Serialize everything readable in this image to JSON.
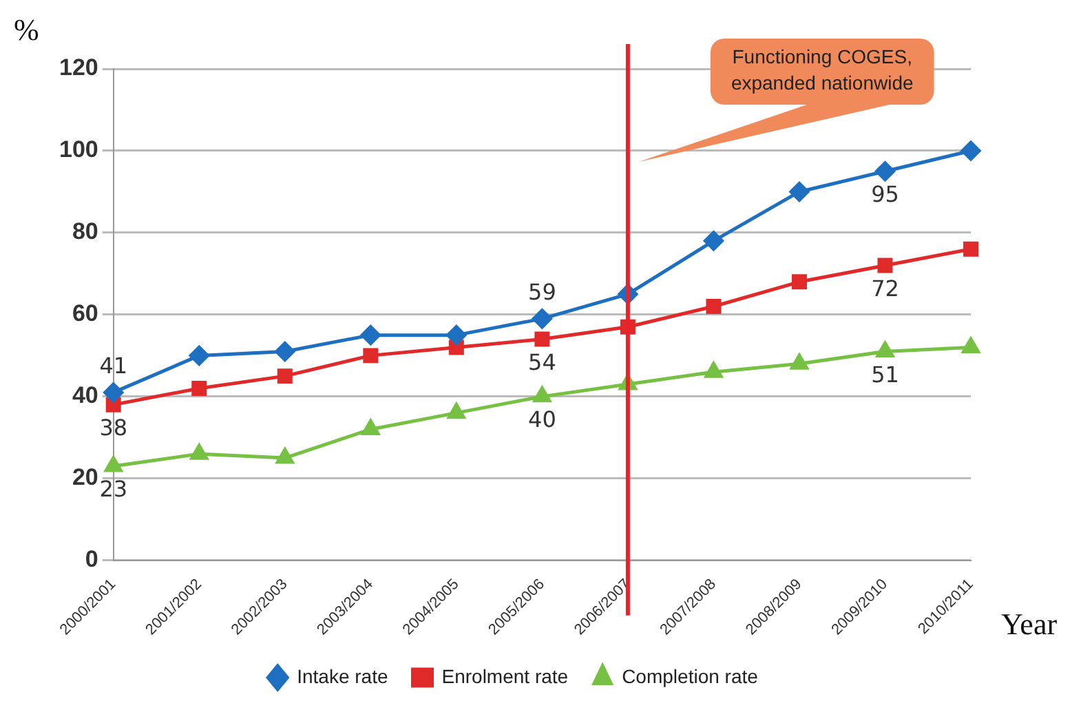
{
  "chart_data": {
    "type": "line",
    "xlabel": "Year",
    "ylabel": "%",
    "categories": [
      "2000/2001",
      "2001/2002",
      "2002/2003",
      "2003/2004",
      "2004/2005",
      "2005/2006",
      "2006/2007",
      "2007/2008",
      "2008/2009",
      "2009/2010",
      "2010/2011"
    ],
    "series": [
      {
        "name": "Intake rate",
        "color": "#1f6fc0",
        "marker": "diamond",
        "values": [
          41,
          50,
          51,
          55,
          55,
          59,
          65,
          78,
          90,
          95,
          100
        ],
        "value_labels": [
          "41",
          null,
          null,
          null,
          null,
          "59",
          null,
          null,
          null,
          "95",
          null
        ]
      },
      {
        "name": "Enrolment rate",
        "color": "#e02a2a",
        "marker": "square",
        "values": [
          38,
          42,
          45,
          50,
          52,
          54,
          57,
          62,
          68,
          72,
          76
        ],
        "value_labels": [
          "38",
          null,
          null,
          null,
          null,
          "54",
          null,
          null,
          null,
          "72",
          null
        ]
      },
      {
        "name": "Completion rate",
        "color": "#76c043",
        "marker": "triangle",
        "values": [
          23,
          26,
          25,
          32,
          36,
          40,
          43,
          46,
          48,
          51,
          52
        ],
        "value_labels": [
          "23",
          null,
          null,
          null,
          null,
          "40",
          null,
          null,
          null,
          "51",
          null
        ]
      }
    ],
    "ylim": [
      0,
      120
    ],
    "yticks": [
      0,
      20,
      40,
      60,
      80,
      100,
      120
    ],
    "grid": "y",
    "legend": "bottom",
    "ref_lines": [
      {
        "axis": "x",
        "value": "2006/2007",
        "label": "Functioning COGES, expanded nationwide",
        "color": "#e8212a"
      }
    ]
  }
}
